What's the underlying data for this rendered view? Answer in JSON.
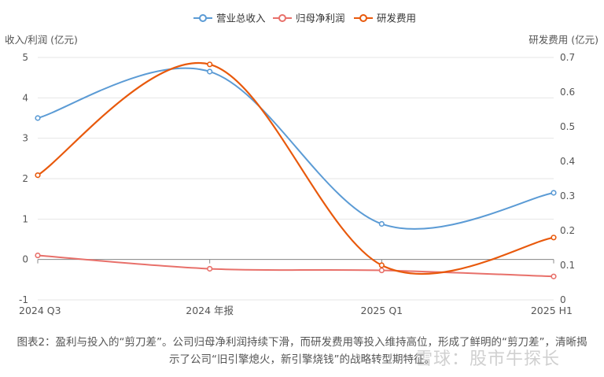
{
  "chart_data": {
    "type": "line",
    "categories": [
      "2024 Q3",
      "2024 年报",
      "2025 Q1",
      "2025 H1"
    ],
    "series": [
      {
        "name": "营业总收入",
        "axis": "left",
        "color": "#5b9bd5",
        "values": [
          3.5,
          4.65,
          0.88,
          1.65
        ]
      },
      {
        "name": "归母净利润",
        "axis": "left",
        "color": "#e8706a",
        "values": [
          0.1,
          -0.23,
          -0.27,
          -0.42
        ]
      },
      {
        "name": "研发费用",
        "axis": "right",
        "color": "#e8590c",
        "values": [
          0.36,
          0.68,
          0.1,
          0.18
        ]
      }
    ],
    "ylabel_left": "收入/利润 (亿元)",
    "ylabel_right": "研发费用 (亿元)",
    "ylim_left": [
      -1,
      5
    ],
    "yticks_left": [
      "-1",
      "0",
      "1",
      "2",
      "3",
      "4",
      "5"
    ],
    "ylim_right": [
      0,
      0.7
    ],
    "yticks_right": [
      "0",
      "0.1",
      "0.2",
      "0.3",
      "0.4",
      "0.5",
      "0.6",
      "0.7"
    ],
    "legend_position": "top-center",
    "grid": true
  },
  "caption": {
    "line1": "图表2：盈利与投入的“剪刀差”。公司归母净利润持续下滑，而研发费用等投入维持高位，形成了鲜明的“剪刀差”，清晰揭",
    "line2": "示了公司“旧引擎熄火，新引擎烧钱”的战略转型期特征。"
  },
  "watermark": "雪球：股市牛探长"
}
